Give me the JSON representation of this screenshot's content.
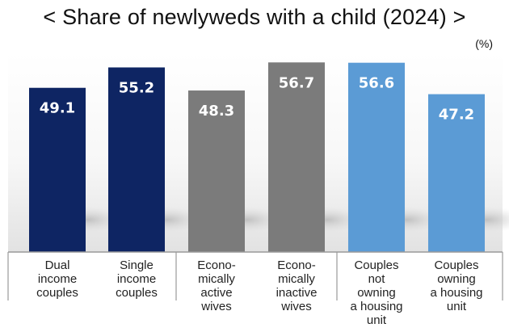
{
  "chart_data": {
    "type": "bar",
    "title": "< Share of newlyweds with a child (2024) >",
    "unit": "(%)",
    "ylim": [
      0,
      60
    ],
    "categories": [
      [
        "Dual",
        "income",
        "couples"
      ],
      [
        "Single",
        "income",
        "couples"
      ],
      [
        "Econo-",
        "mically",
        "active",
        "wives"
      ],
      [
        "Econo-",
        "mically",
        "inactive",
        "wives"
      ],
      [
        "Couples",
        "not",
        "owning",
        "a housing",
        "unit"
      ],
      [
        "Couples",
        "owning",
        "a housing",
        "unit"
      ]
    ],
    "values": [
      49.1,
      55.2,
      48.3,
      56.7,
      56.6,
      47.2
    ],
    "value_labels": [
      "49.1",
      "55.2",
      "48.3",
      "56.7",
      "56.6",
      "47.2"
    ],
    "colors": [
      "#0e2563",
      "#0e2563",
      "#7b7b7b",
      "#7b7b7b",
      "#5b9bd5",
      "#5b9bd5"
    ],
    "value_label_color": "#ffffff"
  }
}
